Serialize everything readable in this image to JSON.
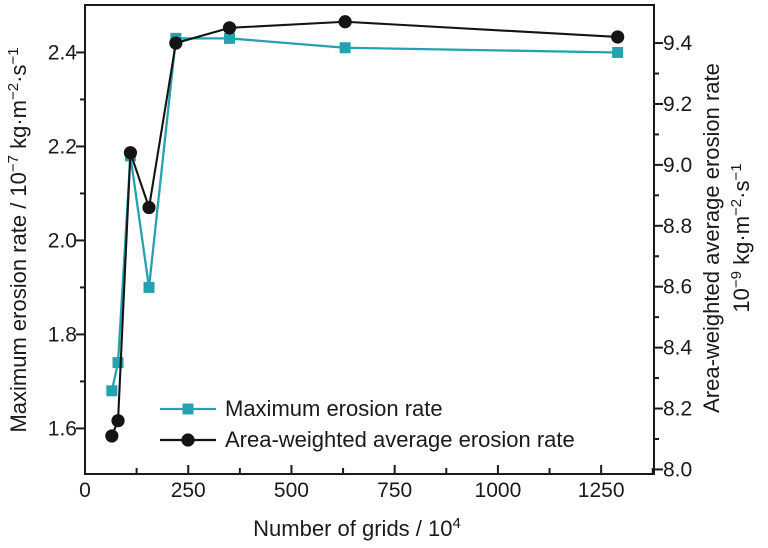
{
  "chart": {
    "background_color": "#ffffff",
    "frame_color": "#1a1a1a",
    "text_color": "#1a1a1a",
    "accent_teal": "#24a2b0",
    "series_black": "#141414"
  },
  "chart_data": {
    "type": "line",
    "title": "",
    "x": [
      65,
      80,
      110,
      155,
      220,
      350,
      630,
      1290
    ],
    "series": [
      {
        "name": "Maximum erosion rate",
        "axis": "left",
        "color": "#24a2b0",
        "marker": "square",
        "values": [
          1.68,
          1.74,
          2.18,
          1.9,
          2.43,
          2.43,
          2.41,
          2.4
        ]
      },
      {
        "name": "Area-weighted average erosion rate",
        "axis": "right",
        "color": "#141414",
        "marker": "circle",
        "values": [
          8.11,
          8.16,
          9.04,
          8.86,
          9.4,
          9.45,
          9.47,
          9.42
        ]
      }
    ],
    "x_axis": {
      "title_parts": [
        {
          "t": "Number of grids / 10"
        },
        {
          "t": "4",
          "sup": true
        }
      ],
      "range": [
        0,
        1378
      ],
      "major_ticks": [
        0,
        250,
        500,
        750,
        1000,
        1250
      ],
      "minor_ticks": [
        125,
        375,
        625,
        875,
        1125,
        1375
      ],
      "decimals": 0
    },
    "left_axis": {
      "title_parts": [
        {
          "t": "Maximum erosion rate / 10"
        },
        {
          "t": "−7",
          "sup": true
        },
        {
          "t": " kg·m"
        },
        {
          "t": "−2",
          "sup": true
        },
        {
          "t": "·s"
        },
        {
          "t": "−1",
          "sup": true
        }
      ],
      "range": [
        1.503,
        2.501
      ],
      "major_ticks": [
        1.6,
        1.8,
        2.0,
        2.2,
        2.4
      ],
      "minor_ticks": [
        1.7,
        1.9,
        2.1,
        2.3
      ],
      "decimals": 1
    },
    "right_axis": {
      "title_line1": "Area-weighted average erosion rate",
      "title_line2_parts": [
        {
          "t": "10"
        },
        {
          "t": "−9",
          "sup": true
        },
        {
          "t": " kg·m"
        },
        {
          "t": "−2",
          "sup": true
        },
        {
          "t": "·s"
        },
        {
          "t": "−1",
          "sup": true
        }
      ],
      "range": [
        7.985,
        9.525
      ],
      "major_ticks": [
        8.0,
        8.2,
        8.4,
        8.6,
        8.8,
        9.0,
        9.2,
        9.4
      ],
      "minor_ticks": [
        8.1,
        8.3,
        8.5,
        8.7,
        8.9,
        9.1,
        9.3
      ],
      "decimals": 1
    },
    "legend": {
      "position": "inside-bottom-left",
      "items": [
        "Maximum erosion rate",
        "Area-weighted average erosion rate"
      ]
    },
    "grid": false
  }
}
